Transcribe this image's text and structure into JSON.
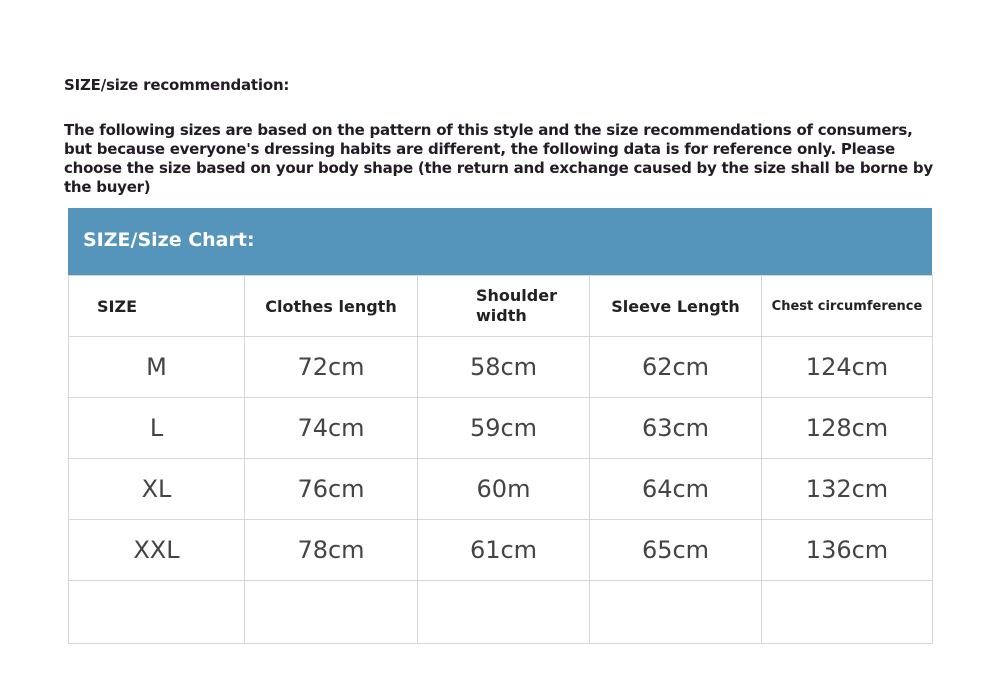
{
  "heading": "SIZE/size recommendation:",
  "paragraph": "The following sizes are based on the pattern of this style and the size recommendations of consumers, but because everyone's dressing habits are different, the following data is for reference only. Please choose the size based on your body shape (the return and exchange caused by the size shall be borne by the buyer)",
  "colors": {
    "banner": "#5594bb",
    "text": "#241b27"
  },
  "table": {
    "title": "SIZE/Size Chart:",
    "columns": [
      "SIZE",
      "Clothes length",
      "Shoulder width",
      "Sleeve Length",
      "Chest circumference"
    ],
    "rows": [
      [
        "M",
        "72cm",
        "58cm",
        "62cm",
        "124cm"
      ],
      [
        "L",
        "74cm",
        "59cm",
        "63cm",
        "128cm"
      ],
      [
        "XL",
        "76cm",
        "60m",
        "64cm",
        "132cm"
      ],
      [
        "XXL",
        "78cm",
        "61cm",
        "65cm",
        "136cm"
      ]
    ]
  }
}
